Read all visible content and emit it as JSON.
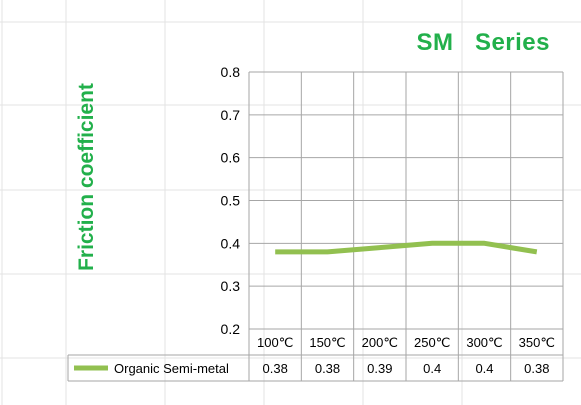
{
  "chart_data": {
    "type": "line",
    "title": "SM   Series",
    "ylabel": "Friction coefficient",
    "xlabel": "",
    "categories": [
      "100℃",
      "150℃",
      "200℃",
      "250℃",
      "300℃",
      "350℃"
    ],
    "series": [
      {
        "name": "Organic Semi-metal",
        "values": [
          0.38,
          0.38,
          0.39,
          0.4,
          0.4,
          0.38
        ],
        "cell_labels": [
          "0.38",
          "0.38",
          "0.39",
          "0.4",
          "0.4",
          "0.38"
        ]
      }
    ],
    "y_ticks": [
      "0.2",
      "0.3",
      "0.4",
      "0.5",
      "0.6",
      "0.7",
      "0.8"
    ],
    "ylim": [
      0.2,
      0.8
    ],
    "grid": true,
    "legend": "data-table-bottom",
    "colors": {
      "title": "#22b04b",
      "series": "#92c050",
      "grid": "#a6a6a6"
    }
  }
}
